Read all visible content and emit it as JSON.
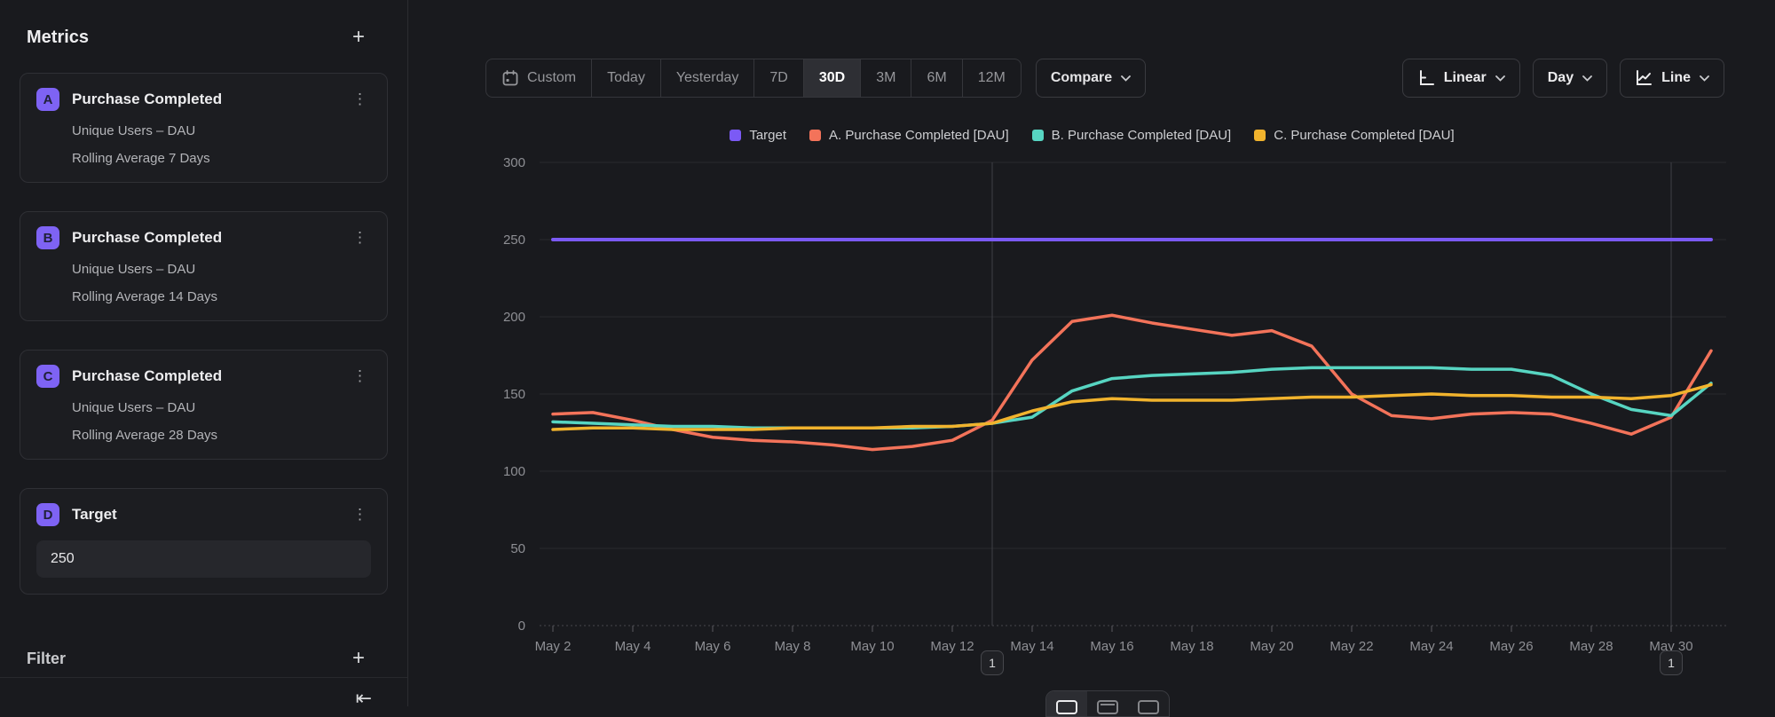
{
  "sidebar": {
    "title": "Metrics",
    "add_icon": "+",
    "kebab_icon": "⋮",
    "metrics": [
      {
        "letter": "A",
        "title": "Purchase Completed",
        "measure": "Unique Users – DAU",
        "transform": "Rolling Average 7 Days"
      },
      {
        "letter": "B",
        "title": "Purchase Completed",
        "measure": "Unique Users – DAU",
        "transform": "Rolling Average 14 Days"
      },
      {
        "letter": "C",
        "title": "Purchase Completed",
        "measure": "Unique Users – DAU",
        "transform": "Rolling Average 28 Days"
      },
      {
        "letter": "D",
        "title": "Target",
        "input_value": "250"
      }
    ],
    "filter": {
      "label": "Filter",
      "add_icon": "+"
    },
    "collapse_icon": "⇤"
  },
  "toolbar": {
    "ranges": [
      "Custom",
      "Today",
      "Yesterday",
      "7D",
      "30D",
      "3M",
      "6M",
      "12M"
    ],
    "selected_range": "30D",
    "custom_has_calendar_icon": true,
    "compare_label": "Compare",
    "scale_label": "Linear",
    "granularity_label": "Day",
    "chart_type_label": "Line"
  },
  "colors": {
    "accent_purple": "#7e63f4",
    "series_target": "#7b5af5",
    "series_a": "#f3735a",
    "series_b": "#57d5c2",
    "series_c": "#f1b32d",
    "background": "#191a1e",
    "grid": "#292a2e"
  },
  "chart_data": {
    "type": "line",
    "title": "",
    "xlabel": "",
    "ylabel": "",
    "ylim": [
      0,
      300
    ],
    "yticks": [
      0,
      50,
      100,
      150,
      200,
      250,
      300
    ],
    "grid": true,
    "legend_position": "top",
    "x": [
      "May 2",
      "May 3",
      "May 4",
      "May 5",
      "May 6",
      "May 7",
      "May 8",
      "May 9",
      "May 10",
      "May 11",
      "May 12",
      "May 13",
      "May 14",
      "May 15",
      "May 16",
      "May 17",
      "May 18",
      "May 19",
      "May 20",
      "May 21",
      "May 22",
      "May 23",
      "May 24",
      "May 25",
      "May 26",
      "May 27",
      "May 28",
      "May 29",
      "May 30",
      "May 31"
    ],
    "x_tick_labels": [
      "May 2",
      "May 4",
      "May 6",
      "May 8",
      "May 10",
      "May 12",
      "May 14",
      "May 16",
      "May 18",
      "May 20",
      "May 22",
      "May 24",
      "May 26",
      "May 28",
      "May 30"
    ],
    "series": [
      {
        "name": "Target",
        "color": "#7b5af5",
        "width": 4,
        "values": [
          250,
          250,
          250,
          250,
          250,
          250,
          250,
          250,
          250,
          250,
          250,
          250,
          250,
          250,
          250,
          250,
          250,
          250,
          250,
          250,
          250,
          250,
          250,
          250,
          250,
          250,
          250,
          250,
          250,
          250
        ]
      },
      {
        "name": "A. Purchase Completed [DAU]",
        "color": "#f3735a",
        "width": 3.5,
        "values": [
          137,
          138,
          133,
          127,
          122,
          120,
          119,
          117,
          114,
          116,
          120,
          133,
          172,
          197,
          201,
          196,
          192,
          188,
          191,
          181,
          150,
          136,
          134,
          137,
          138,
          137,
          131,
          124,
          135,
          178
        ]
      },
      {
        "name": "B. Purchase Completed [DAU]",
        "color": "#57d5c2",
        "width": 3.5,
        "values": [
          132,
          131,
          130,
          129,
          129,
          128,
          128,
          128,
          128,
          128,
          129,
          131,
          135,
          152,
          160,
          162,
          163,
          164,
          166,
          167,
          167,
          167,
          167,
          166,
          166,
          162,
          150,
          140,
          136,
          157
        ]
      },
      {
        "name": "C. Purchase Completed [DAU]",
        "color": "#f1b32d",
        "width": 3.5,
        "values": [
          127,
          128,
          128,
          127,
          127,
          127,
          128,
          128,
          128,
          129,
          129,
          131,
          139,
          145,
          147,
          146,
          146,
          146,
          147,
          148,
          148,
          149,
          150,
          149,
          149,
          148,
          148,
          147,
          149,
          156
        ]
      }
    ],
    "annotations": [
      {
        "label": "1",
        "x": "May 13"
      },
      {
        "label": "1",
        "x": "May 30"
      }
    ]
  }
}
